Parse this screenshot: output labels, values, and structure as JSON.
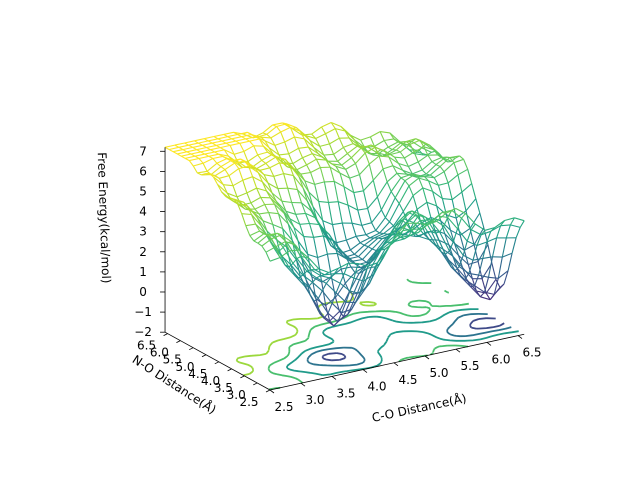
{
  "chart_data": {
    "type": "surface3d",
    "title": "",
    "xlabel": "C-O Distance(Å)",
    "ylabel": "N-O Distance(Å)",
    "zlabel": "Free Energy(kcal/mol)",
    "xlim": [
      2.5,
      6.6
    ],
    "ylim": [
      2.5,
      6.6
    ],
    "zlim": [
      -2,
      7.2
    ],
    "x_ticks": [
      "2.5",
      "3.0",
      "3.5",
      "4.0",
      "4.5",
      "5.0",
      "5.5",
      "6.0",
      "6.5"
    ],
    "y_ticks": [
      "2.5",
      "3.0",
      "3.5",
      "4.0",
      "4.5",
      "5.0",
      "5.5",
      "6.0",
      "6.5"
    ],
    "z_ticks": [
      "−2",
      "−1",
      "0",
      "1",
      "2",
      "3",
      "4",
      "5",
      "6",
      "7"
    ],
    "colormap": "viridis",
    "contour_projection": "bottom",
    "grid": false,
    "minima": [
      {
        "x": 3.9,
        "y": 3.4,
        "z": -0.8
      },
      {
        "x": 6.3,
        "y": 3.5,
        "z": -0.9
      },
      {
        "x": 4.8,
        "y": 4.6,
        "z": 0.7
      }
    ],
    "approx_max": {
      "x": 2.5,
      "y": 6.5,
      "z": 7.2
    }
  }
}
